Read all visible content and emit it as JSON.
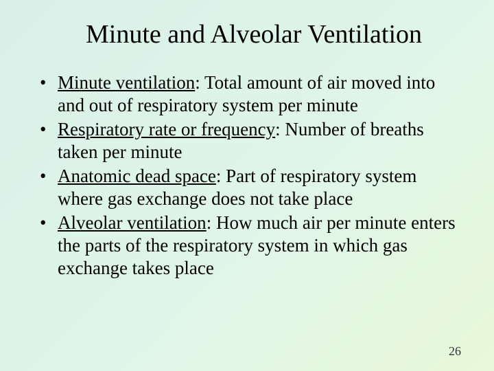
{
  "slide": {
    "title": "Minute and Alveolar Ventilation",
    "bullets": [
      {
        "term": "Minute ventilation",
        "definition": ": Total amount of air moved into and out of respiratory system per minute"
      },
      {
        "term": "Respiratory rate or frequency",
        "definition": ": Number of breaths taken per minute"
      },
      {
        "term": "Anatomic dead space",
        "definition": ": Part of respiratory system where gas exchange does not take place"
      },
      {
        "term": "Alveolar ventilation",
        "definition": ": How much air per minute enters the parts of the respiratory system in which gas exchange takes place"
      }
    ],
    "page_number": "26",
    "style": {
      "background_gradient_start": "#d8f0e8",
      "background_gradient_mid": "#dff5eb",
      "background_gradient_end": "#e8f8d8",
      "title_fontsize": 38,
      "body_fontsize": 27,
      "page_number_fontsize": 18,
      "font_family": "Times New Roman",
      "text_color": "#000000"
    }
  }
}
